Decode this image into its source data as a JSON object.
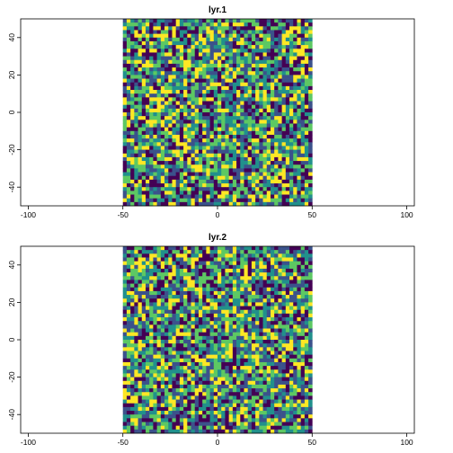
{
  "chart_data": [
    {
      "type": "heatmap",
      "title": "lyr.1",
      "xlim": [
        -104,
        104
      ],
      "ylim": [
        -50,
        50
      ],
      "extent": {
        "xmin": -50,
        "xmax": 50,
        "ymin": -50,
        "ymax": 50
      },
      "grid_cells": {
        "ncol": 50,
        "nrow": 50
      },
      "x_ticks": [
        -100,
        -50,
        0,
        50,
        100
      ],
      "y_ticks": [
        -40,
        -20,
        0,
        20,
        40
      ],
      "values": "random noise pattern rendered with viridis palette",
      "seed": 17,
      "legend": "none"
    },
    {
      "type": "heatmap",
      "title": "lyr.2",
      "xlim": [
        -104,
        104
      ],
      "ylim": [
        -50,
        50
      ],
      "extent": {
        "xmin": -50,
        "xmax": 50,
        "ymin": -50,
        "ymax": 50
      },
      "grid_cells": {
        "ncol": 50,
        "nrow": 50
      },
      "x_ticks": [
        -100,
        -50,
        0,
        50,
        100
      ],
      "y_ticks": [
        -40,
        -20,
        0,
        20,
        40
      ],
      "values": "random noise pattern rendered with viridis palette",
      "seed": 53,
      "legend": "none"
    }
  ],
  "palette": [
    "#440154",
    "#3b528b",
    "#21908c",
    "#5dc863",
    "#fde725"
  ]
}
